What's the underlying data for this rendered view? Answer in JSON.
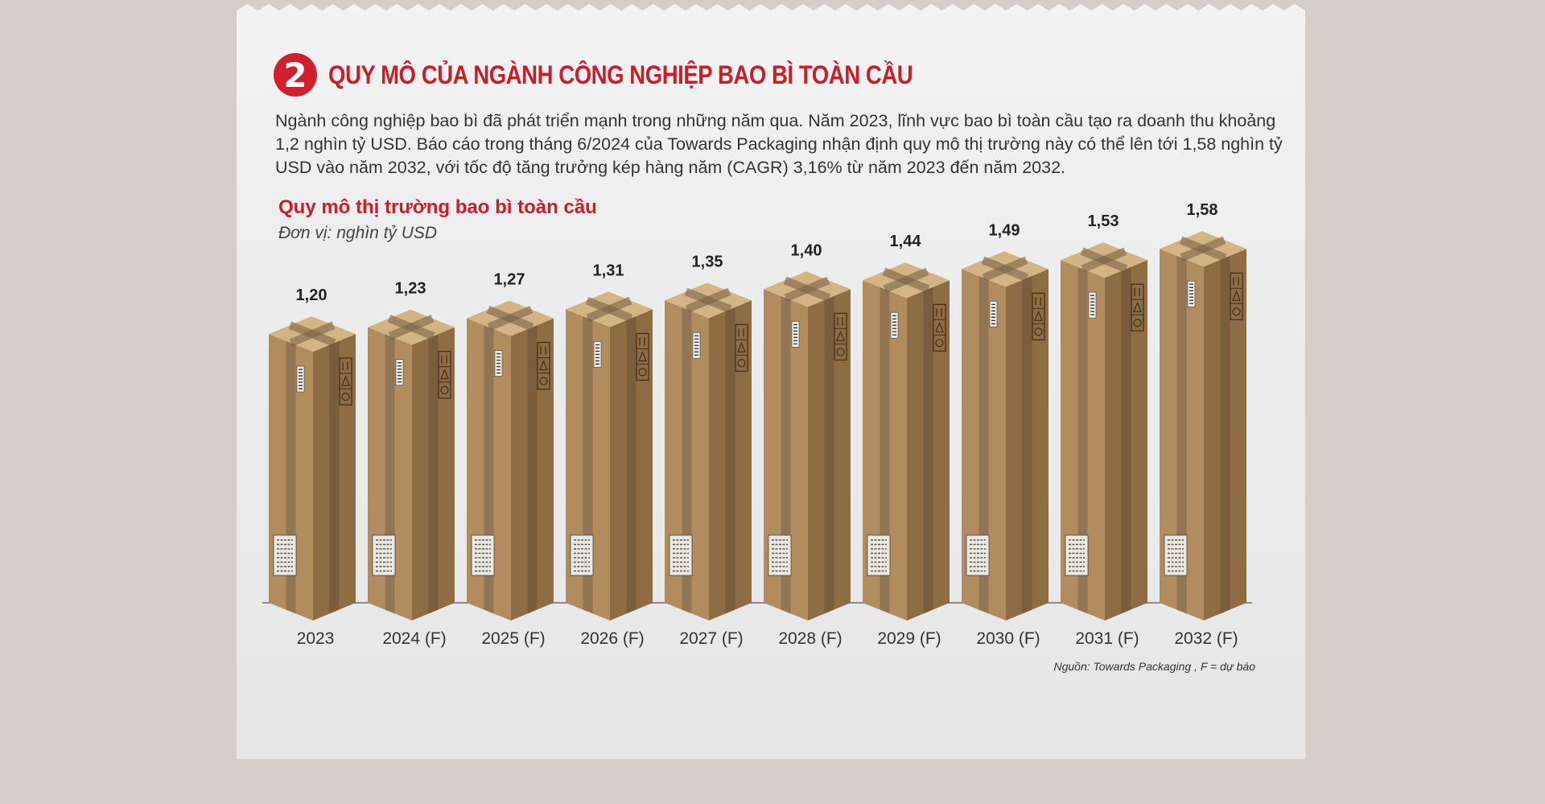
{
  "section_number": "2",
  "section_title": "QUY MÔ CỦA NGÀNH CÔNG NGHIỆP BAO BÌ TOÀN CẦU",
  "intro_text": "Ngành công nghiệp bao bì đã phát triển mạnh trong những năm qua. Năm 2023, lĩnh vực bao bì toàn cầu tạo ra doanh thu khoảng 1,2 nghìn tỷ USD. Báo cáo trong tháng 6/2024 của Towards Packaging nhận định quy mô thị trường này có thể lên tới 1,58 nghìn tỷ USD vào năm 2032, với tốc độ tăng trưởng kép hàng năm (CAGR) 3,16% từ năm 2023 đến năm 2032.",
  "source_note": "Nguồn: Towards Packaging , F = dự báo",
  "colors": {
    "accent_red": "#c81d2b",
    "box_front": "#b08c5f",
    "box_side": "#8e6c44",
    "box_top": "#d3b585",
    "tape": "#7a6248"
  },
  "chart_data": {
    "type": "bar",
    "title": "Quy mô thị trường bao bì toàn cầu",
    "ylabel": "Đơn vị: nghìn tỷ USD",
    "categories": [
      "2023",
      "2024 (F)",
      "2025 (F)",
      "2026 (F)",
      "2027 (F)",
      "2028 (F)",
      "2029 (F)",
      "2030 (F)",
      "2031 (F)",
      "2032 (F)"
    ],
    "values": [
      1.2,
      1.23,
      1.27,
      1.31,
      1.35,
      1.4,
      1.44,
      1.49,
      1.53,
      1.58
    ],
    "value_labels": [
      "1,20",
      "1,23",
      "1,27",
      "1,31",
      "1,35",
      "1,40",
      "1,44",
      "1,49",
      "1,53",
      "1,58"
    ],
    "grid": false,
    "legend": "none"
  }
}
